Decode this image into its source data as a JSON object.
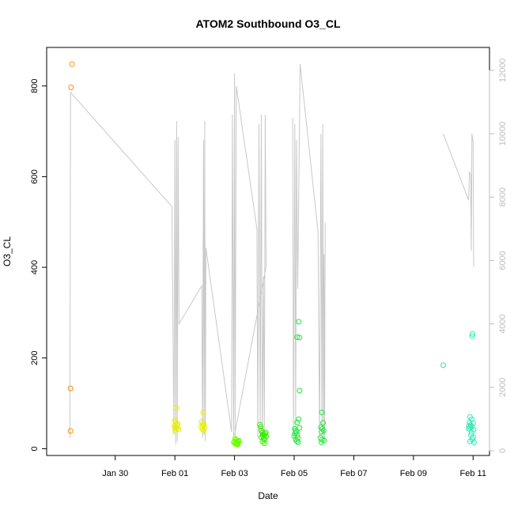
{
  "chart_data": {
    "type": "scatter",
    "title": "ATOM2 Southbound O3_CL",
    "xlabel": "Date",
    "ylabel": "O3_CL",
    "xlim": [
      27.7,
      42.55
    ],
    "ylim": [
      -15,
      885
    ],
    "y_ticks": [
      0,
      200,
      400,
      600,
      800
    ],
    "y2lim": [
      -150,
      12720
    ],
    "y2_ticks": [
      0,
      2000,
      4000,
      6000,
      8000,
      10000,
      12000
    ],
    "x_ticks": [
      {
        "x": 30,
        "label": "Jan 30"
      },
      {
        "x": 32,
        "label": "Feb 01"
      },
      {
        "x": 34,
        "label": "Feb 03"
      },
      {
        "x": 36,
        "label": "Feb 05"
      },
      {
        "x": 38,
        "label": "Feb 07"
      },
      {
        "x": 40,
        "label": "Feb 09"
      },
      {
        "x": 42,
        "label": "Feb 11"
      }
    ],
    "grid": false,
    "series": [
      {
        "color": "#ff8c00",
        "points": [
          [
            28.55,
            848
          ],
          [
            28.52,
            797
          ],
          [
            28.5,
            133
          ],
          [
            28.5,
            39
          ]
        ]
      },
      {
        "color": "#e8f000",
        "points": [
          [
            32.05,
            90
          ],
          [
            32.0,
            62
          ],
          [
            32.03,
            57
          ],
          [
            32.1,
            55
          ],
          [
            32.07,
            52
          ],
          [
            31.98,
            50
          ],
          [
            32.02,
            48
          ],
          [
            32.08,
            46
          ],
          [
            32.05,
            45
          ],
          [
            32.12,
            43
          ],
          [
            32.0,
            41
          ],
          [
            32.95,
            80
          ],
          [
            32.9,
            60
          ],
          [
            32.92,
            56
          ],
          [
            32.97,
            53
          ],
          [
            32.94,
            50
          ],
          [
            32.88,
            48
          ],
          [
            32.99,
            46
          ],
          [
            32.93,
            43
          ],
          [
            32.96,
            40
          ]
        ]
      },
      {
        "color": "#66ff00",
        "points": [
          [
            34.02,
            22
          ],
          [
            34.05,
            19
          ],
          [
            34.1,
            17
          ],
          [
            34.0,
            15
          ],
          [
            34.08,
            13
          ],
          [
            34.12,
            12
          ],
          [
            34.03,
            11
          ],
          [
            34.07,
            10
          ],
          [
            34.15,
            16
          ],
          [
            34.1,
            9
          ],
          [
            33.98,
            14
          ],
          [
            34.14,
            18
          ]
        ]
      },
      {
        "color": "#33ee00",
        "points": [
          [
            34.85,
            53
          ],
          [
            34.88,
            48
          ],
          [
            34.9,
            40
          ],
          [
            34.93,
            35
          ],
          [
            34.96,
            32
          ],
          [
            35.0,
            30
          ],
          [
            35.03,
            33
          ],
          [
            34.95,
            28
          ],
          [
            35.06,
            27
          ],
          [
            34.9,
            25
          ],
          [
            34.98,
            22
          ],
          [
            35.02,
            20
          ],
          [
            34.94,
            16
          ],
          [
            35.0,
            12
          ],
          [
            35.05,
            36
          ]
        ]
      },
      {
        "color": "#22e83a",
        "points": [
          [
            36.15,
            280
          ],
          [
            36.1,
            246
          ],
          [
            36.18,
            245
          ],
          [
            36.18,
            128
          ],
          [
            36.15,
            65
          ],
          [
            36.1,
            58
          ],
          [
            36.18,
            46
          ],
          [
            36.02,
            44
          ],
          [
            36.05,
            40
          ],
          [
            36.08,
            37
          ],
          [
            36.03,
            34
          ],
          [
            36.1,
            30
          ],
          [
            36.0,
            28
          ],
          [
            36.12,
            24
          ],
          [
            36.05,
            20
          ],
          [
            36.09,
            17
          ],
          [
            36.13,
            14
          ],
          [
            36.93,
            80
          ],
          [
            36.97,
            57
          ],
          [
            36.9,
            47
          ],
          [
            36.95,
            44
          ],
          [
            36.99,
            40
          ],
          [
            36.92,
            37
          ],
          [
            36.88,
            24
          ],
          [
            36.94,
            20
          ],
          [
            37.0,
            18
          ],
          [
            36.91,
            14
          ]
        ]
      },
      {
        "color": "#2ee8b4",
        "points": [
          [
            41.0,
            184
          ],
          [
            41.98,
            253
          ],
          [
            41.97,
            248
          ],
          [
            41.9,
            70
          ],
          [
            41.95,
            65
          ],
          [
            41.88,
            58
          ],
          [
            42.0,
            56
          ],
          [
            41.92,
            52
          ],
          [
            41.86,
            50
          ],
          [
            41.96,
            48
          ],
          [
            41.9,
            46
          ],
          [
            41.85,
            44
          ],
          [
            42.02,
            42
          ],
          [
            41.93,
            30
          ],
          [
            42.0,
            25
          ],
          [
            41.97,
            20
          ],
          [
            41.9,
            16
          ],
          [
            42.03,
            14
          ],
          [
            41.95,
            35
          ]
        ]
      }
    ],
    "line_series": {
      "color": "#c8c8c8",
      "axis": "right",
      "segments": [
        [
          [
            28.48,
            400
          ],
          [
            28.5,
            11300
          ],
          [
            31.9,
            7700
          ],
          [
            31.97,
            500
          ],
          [
            32.0,
            9800
          ],
          [
            32.03,
            200
          ],
          [
            32.06,
            10400
          ],
          [
            32.08,
            300
          ],
          [
            32.11,
            9900
          ],
          [
            32.14,
            4000
          ],
          [
            32.9,
            5200
          ],
          [
            32.93,
            400
          ],
          [
            32.96,
            9800
          ],
          [
            32.98,
            500
          ],
          [
            33.0,
            10400
          ],
          [
            33.02,
            300
          ],
          [
            33.04,
            6400
          ],
          [
            33.9,
            600
          ],
          [
            33.93,
            10600
          ],
          [
            33.97,
            400
          ],
          [
            34.0,
            11900
          ],
          [
            34.02,
            300
          ],
          [
            34.06,
            11500
          ],
          [
            34.75,
            7000
          ],
          [
            34.78,
            400
          ],
          [
            34.82,
            10300
          ],
          [
            34.86,
            600
          ],
          [
            34.9,
            10600
          ],
          [
            34.93,
            300
          ],
          [
            34.97,
            5500
          ],
          [
            35.0,
            500
          ],
          [
            35.03,
            10600
          ],
          [
            35.06,
            5800
          ],
          [
            34.0,
            500
          ]
        ],
        [
          [
            35.95,
            10500
          ],
          [
            35.98,
            400
          ],
          [
            36.02,
            10300
          ],
          [
            36.05,
            600
          ],
          [
            36.08,
            9800
          ],
          [
            36.1,
            7000
          ],
          [
            36.12,
            5100
          ],
          [
            36.2,
            12200
          ],
          [
            36.8,
            6900
          ],
          [
            36.85,
            400
          ],
          [
            36.9,
            10000
          ],
          [
            36.93,
            500
          ],
          [
            36.96,
            10300
          ],
          [
            36.98,
            300
          ],
          [
            37.0,
            6200
          ],
          [
            37.02,
            400
          ],
          [
            37.04,
            7200
          ]
        ],
        [
          [
            41.0,
            10000
          ],
          [
            41.85,
            7900
          ],
          [
            41.88,
            8800
          ],
          [
            41.92,
            8700
          ],
          [
            41.94,
            6300
          ],
          [
            41.96,
            10000
          ],
          [
            42.0,
            9700
          ],
          [
            42.02,
            5800
          ]
        ]
      ]
    }
  }
}
